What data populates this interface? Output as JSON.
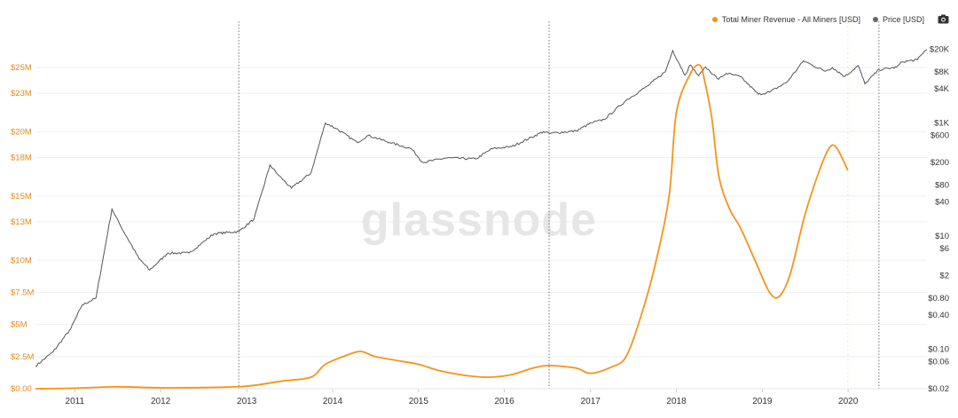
{
  "legend": {
    "revenue_label": "Total Miner Revenue - All Miners [USD]",
    "price_label": "Price [USD]"
  },
  "watermark": "glassnode",
  "colors": {
    "revenue": "#f7931a",
    "price": "#555555",
    "left_axis": "#e58a1f",
    "grid": "#efefef"
  },
  "chart_data": {
    "type": "line",
    "x_ticks": [
      "2011",
      "2012",
      "2013",
      "2014",
      "2015",
      "2016",
      "2017",
      "2018",
      "2019",
      "2020"
    ],
    "y_left": {
      "label": "",
      "ticks": [
        "$0.00",
        "$2.5M",
        "$5M",
        "$7.5M",
        "$10M",
        "$13M",
        "$15M",
        "$18M",
        "$20M",
        "$23M",
        "$25M"
      ],
      "range": [
        0,
        27500000
      ]
    },
    "y_right": {
      "label": "",
      "scale": "log",
      "ticks": [
        "$0.02",
        "$0.06",
        "$0.10",
        "$0.40",
        "$0.80",
        "$2",
        "$6",
        "$10",
        "$40",
        "$80",
        "$200",
        "$600",
        "$1K",
        "$4K",
        "$8K",
        "$20K"
      ],
      "range": [
        0.02,
        35000
      ]
    },
    "vertical_markers": [
      "2012-11-28",
      "2016-07-09",
      "2020-05-11"
    ],
    "series": [
      {
        "name": "Total Miner Revenue - All Miners [USD]",
        "axis": "left",
        "points": [
          [
            "2010-07-18",
            0
          ],
          [
            "2011-01-01",
            40000
          ],
          [
            "2011-07-01",
            150000
          ],
          [
            "2012-01-01",
            70000
          ],
          [
            "2012-07-01",
            90000
          ],
          [
            "2013-01-01",
            200000
          ],
          [
            "2013-06-01",
            600000
          ],
          [
            "2013-10-01",
            900000
          ],
          [
            "2013-12-01",
            1900000
          ],
          [
            "2014-03-01",
            2600000
          ],
          [
            "2014-05-01",
            2900000
          ],
          [
            "2014-07-01",
            2500000
          ],
          [
            "2014-10-01",
            2200000
          ],
          [
            "2015-01-01",
            1900000
          ],
          [
            "2015-04-01",
            1400000
          ],
          [
            "2015-08-01",
            1000000
          ],
          [
            "2015-11-01",
            900000
          ],
          [
            "2016-02-01",
            1100000
          ],
          [
            "2016-05-01",
            1600000
          ],
          [
            "2016-07-09",
            1800000
          ],
          [
            "2016-11-01",
            1600000
          ],
          [
            "2017-01-01",
            1200000
          ],
          [
            "2017-04-01",
            1700000
          ],
          [
            "2017-06-01",
            2500000
          ],
          [
            "2017-08-01",
            5500000
          ],
          [
            "2017-10-01",
            9500000
          ],
          [
            "2017-12-01",
            15000000
          ],
          [
            "2018-01-01",
            21500000
          ],
          [
            "2018-03-01",
            24500000
          ],
          [
            "2018-04-10",
            25200000
          ],
          [
            "2018-05-01",
            24000000
          ],
          [
            "2018-06-01",
            21000000
          ],
          [
            "2018-07-01",
            16500000
          ],
          [
            "2018-08-15",
            14000000
          ],
          [
            "2018-10-01",
            12500000
          ],
          [
            "2018-12-01",
            10000000
          ],
          [
            "2019-02-01",
            7500000
          ],
          [
            "2019-03-15",
            7200000
          ],
          [
            "2019-05-01",
            9000000
          ],
          [
            "2019-07-01",
            13500000
          ],
          [
            "2019-09-01",
            17000000
          ],
          [
            "2019-10-15",
            18800000
          ],
          [
            "2019-11-15",
            18700000
          ],
          [
            "2019-12-31",
            17000000
          ]
        ]
      },
      {
        "name": "Price [USD]",
        "axis": "right",
        "points": [
          [
            "2010-07-18",
            0.05
          ],
          [
            "2010-10-01",
            0.09
          ],
          [
            "2010-12-15",
            0.23
          ],
          [
            "2011-02-01",
            0.6
          ],
          [
            "2011-04-01",
            0.8
          ],
          [
            "2011-06-08",
            30
          ],
          [
            "2011-07-15",
            15
          ],
          [
            "2011-10-01",
            4
          ],
          [
            "2011-11-15",
            2.5
          ],
          [
            "2012-02-01",
            5
          ],
          [
            "2012-05-01",
            5
          ],
          [
            "2012-08-15",
            11
          ],
          [
            "2012-11-28",
            12
          ],
          [
            "2013-02-01",
            20
          ],
          [
            "2013-04-10",
            180
          ],
          [
            "2013-05-15",
            120
          ],
          [
            "2013-07-10",
            70
          ],
          [
            "2013-10-01",
            130
          ],
          [
            "2013-12-01",
            1000
          ],
          [
            "2014-01-15",
            800
          ],
          [
            "2014-04-15",
            450
          ],
          [
            "2014-06-01",
            600
          ],
          [
            "2014-09-01",
            450
          ],
          [
            "2014-12-01",
            350
          ],
          [
            "2015-01-20",
            200
          ],
          [
            "2015-05-01",
            240
          ],
          [
            "2015-09-01",
            230
          ],
          [
            "2015-11-10",
            350
          ],
          [
            "2016-02-01",
            380
          ],
          [
            "2016-06-15",
            700
          ],
          [
            "2016-07-09",
            650
          ],
          [
            "2016-11-01",
            720
          ],
          [
            "2017-01-05",
            1000
          ],
          [
            "2017-03-01",
            1150
          ],
          [
            "2017-06-01",
            2500
          ],
          [
            "2017-09-01",
            4500
          ],
          [
            "2017-11-15",
            8000
          ],
          [
            "2017-12-17",
            19000
          ],
          [
            "2018-02-06",
            7000
          ],
          [
            "2018-03-01",
            10500
          ],
          [
            "2018-04-06",
            6800
          ],
          [
            "2018-05-05",
            9700
          ],
          [
            "2018-06-29",
            5900
          ],
          [
            "2018-08-01",
            7500
          ],
          [
            "2018-10-01",
            6500
          ],
          [
            "2018-12-15",
            3200
          ],
          [
            "2019-02-01",
            3500
          ],
          [
            "2019-04-15",
            5200
          ],
          [
            "2019-06-26",
            12500
          ],
          [
            "2019-08-01",
            10500
          ],
          [
            "2019-09-25",
            8200
          ],
          [
            "2019-10-26",
            9500
          ],
          [
            "2019-12-18",
            6600
          ],
          [
            "2020-02-13",
            10300
          ],
          [
            "2020-03-12",
            4900
          ],
          [
            "2020-05-11",
            8700
          ],
          [
            "2020-07-25",
            9600
          ],
          [
            "2020-08-18",
            12000
          ],
          [
            "2020-10-21",
            13000
          ],
          [
            "2020-11-20",
            18500
          ],
          [
            "2020-12-01",
            19500
          ]
        ]
      }
    ]
  }
}
